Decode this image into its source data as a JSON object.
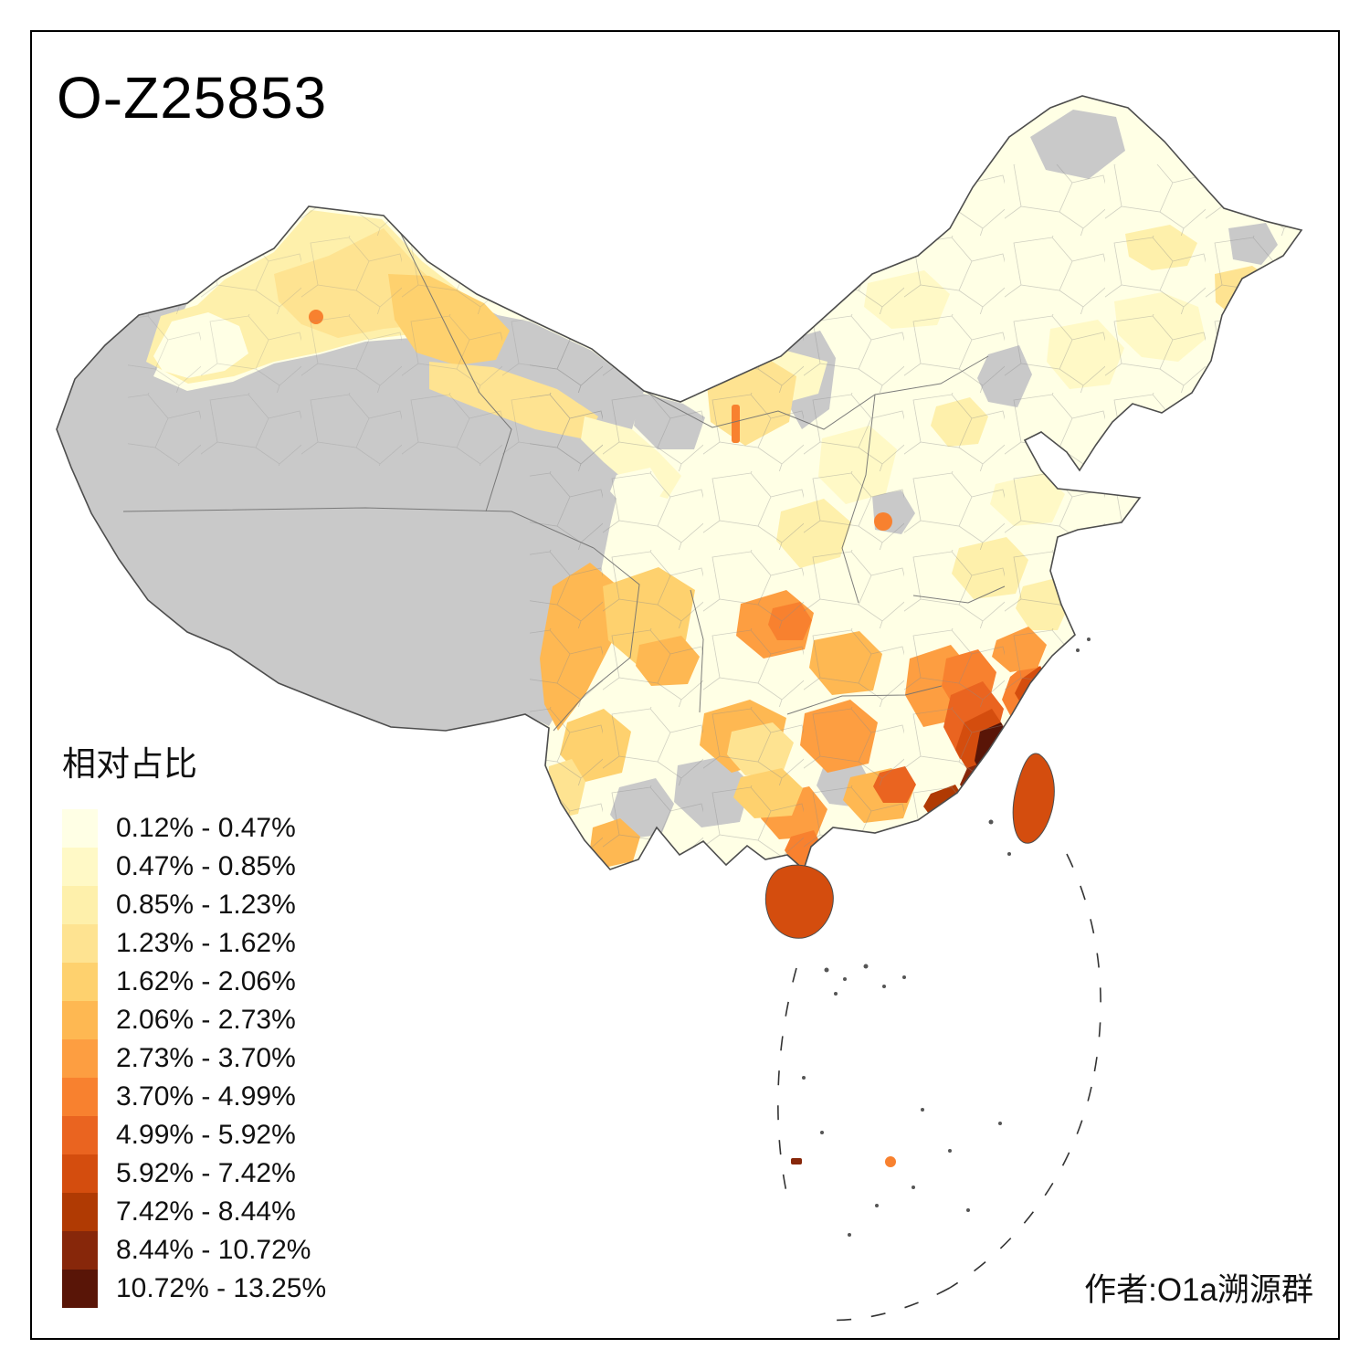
{
  "title": "O-Z25853",
  "legend": {
    "title": "相对占比",
    "no_data_color": "#C9C9C9",
    "classes": [
      {
        "label": "0.12% - 0.47%",
        "color": "#FFFFE5"
      },
      {
        "label": "0.47% - 0.85%",
        "color": "#FFF9C6"
      },
      {
        "label": "0.85% - 1.23%",
        "color": "#FEF0AB"
      },
      {
        "label": "1.23% - 1.62%",
        "color": "#FEE391"
      },
      {
        "label": "1.62% - 2.06%",
        "color": "#FED16E"
      },
      {
        "label": "2.06% - 2.73%",
        "color": "#FEB852"
      },
      {
        "label": "2.73% - 3.70%",
        "color": "#FD9E41"
      },
      {
        "label": "3.70% - 4.99%",
        "color": "#F8812F"
      },
      {
        "label": "4.99% - 5.92%",
        "color": "#EA6420"
      },
      {
        "label": "5.92% - 7.42%",
        "color": "#D44D0E"
      },
      {
        "label": "7.42% - 8.44%",
        "color": "#B03A03"
      },
      {
        "label": "8.44% - 10.72%",
        "color": "#87270A"
      },
      {
        "label": "10.72% - 13.25%",
        "color": "#591507"
      }
    ]
  },
  "attribution": "作者:O1a溯源群",
  "map": {
    "description": "Choropleth map of China prefectures showing relative share of haplogroup O-Z25853; highest along the Fujian coast, Taiwan and Hainan orange, gray = no data (Tibet, southern Xinjiang, Qinghai west)."
  }
}
